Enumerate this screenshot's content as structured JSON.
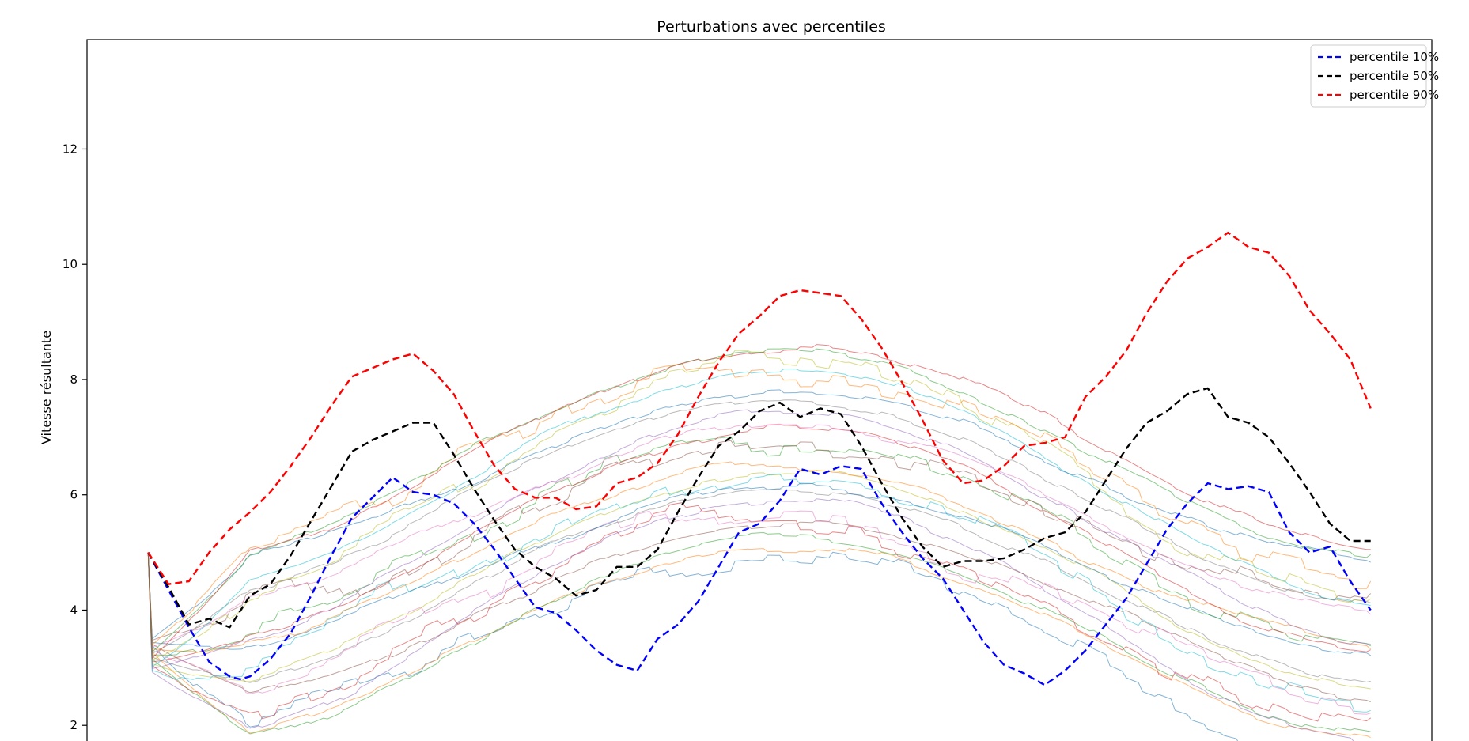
{
  "chart_data": {
    "type": "line",
    "title": "Perturbations avec percentiles",
    "xlabel": "",
    "ylabel": "Vitesse résultante",
    "xlim": [
      -0.3,
      6.3
    ],
    "ylim": [
      1.55,
      13.9
    ],
    "yticks": [
      2,
      4,
      6,
      8,
      10,
      12
    ],
    "xticks": [
      0,
      1,
      2,
      3,
      4,
      5,
      6
    ],
    "grid": false,
    "legend_position": "top-right",
    "background_runs": {
      "count": 24,
      "start_value": 5,
      "opacity": 0.55,
      "palette": [
        "#1f77b4",
        "#ff7f0e",
        "#2ca02c",
        "#d62728",
        "#9467bd",
        "#8c564b",
        "#e377c2",
        "#7f7f7f",
        "#bcbd22",
        "#17becf"
      ]
    },
    "series": [
      {
        "name": "percentile 10%",
        "color": "#0000ff",
        "dash": "dashed",
        "x": [
          0,
          0.1,
          0.2,
          0.3,
          0.4,
          0.45,
          0.5,
          0.6,
          0.7,
          0.8,
          0.9,
          1.0,
          1.1,
          1.2,
          1.3,
          1.4,
          1.5,
          1.6,
          1.7,
          1.8,
          1.9,
          2.0,
          2.1,
          2.2,
          2.3,
          2.4,
          2.5,
          2.6,
          2.7,
          2.8,
          2.9,
          3.0,
          3.1,
          3.2,
          3.3,
          3.4,
          3.5,
          3.6,
          3.7,
          3.8,
          3.9,
          4.0,
          4.1,
          4.2,
          4.3,
          4.4,
          4.5,
          4.6,
          4.7,
          4.8,
          4.9,
          5.0,
          5.1,
          5.2,
          5.3,
          5.4,
          5.5,
          5.6,
          5.7,
          5.8,
          5.9,
          6.0
        ],
        "values": [
          5.0,
          4.35,
          3.7,
          3.1,
          2.85,
          2.8,
          2.85,
          3.15,
          3.6,
          4.25,
          4.95,
          5.6,
          5.95,
          6.3,
          6.05,
          6.0,
          5.85,
          5.5,
          5.05,
          4.55,
          4.05,
          3.95,
          3.65,
          3.3,
          3.05,
          2.95,
          3.5,
          3.75,
          4.15,
          4.75,
          5.35,
          5.5,
          5.9,
          6.45,
          6.35,
          6.5,
          6.45,
          5.85,
          5.35,
          4.9,
          4.55,
          4.0,
          3.45,
          3.05,
          2.9,
          2.7,
          2.95,
          3.3,
          3.75,
          4.2,
          4.8,
          5.4,
          5.85,
          6.2,
          6.1,
          6.15,
          6.05,
          5.35,
          5.0,
          5.1,
          4.5,
          4.0
        ]
      },
      {
        "name": "percentile 50%",
        "color": "#000000",
        "dash": "dashed",
        "x": [
          0,
          0.1,
          0.2,
          0.3,
          0.4,
          0.5,
          0.6,
          0.7,
          0.8,
          0.9,
          1.0,
          1.1,
          1.2,
          1.3,
          1.4,
          1.5,
          1.6,
          1.7,
          1.8,
          1.9,
          2.0,
          2.1,
          2.2,
          2.3,
          2.4,
          2.5,
          2.6,
          2.7,
          2.8,
          2.9,
          3.0,
          3.1,
          3.2,
          3.3,
          3.4,
          3.5,
          3.6,
          3.7,
          3.8,
          3.9,
          4.0,
          4.1,
          4.2,
          4.3,
          4.4,
          4.5,
          4.6,
          4.7,
          4.8,
          4.9,
          5.0,
          5.1,
          5.2,
          5.3,
          5.4,
          5.5,
          5.6,
          5.7,
          5.8,
          5.9,
          6.0
        ],
        "values": [
          5.0,
          4.4,
          3.75,
          3.85,
          3.7,
          4.25,
          4.45,
          4.95,
          5.55,
          6.15,
          6.75,
          6.95,
          7.1,
          7.25,
          7.25,
          6.7,
          6.1,
          5.55,
          5.05,
          4.75,
          4.55,
          4.25,
          4.35,
          4.75,
          4.75,
          5.05,
          5.7,
          6.3,
          6.85,
          7.1,
          7.45,
          7.6,
          7.35,
          7.5,
          7.4,
          6.85,
          6.2,
          5.6,
          5.1,
          4.75,
          4.85,
          4.85,
          4.9,
          5.05,
          5.25,
          5.35,
          5.7,
          6.25,
          6.8,
          7.25,
          7.45,
          7.75,
          7.85,
          7.35,
          7.25,
          7.0,
          6.55,
          6.05,
          5.5,
          5.2,
          5.2
        ]
      },
      {
        "name": "percentile 90%",
        "color": "#ff0000",
        "dash": "dashed",
        "x": [
          0,
          0.1,
          0.2,
          0.3,
          0.4,
          0.5,
          0.6,
          0.7,
          0.8,
          0.9,
          1.0,
          1.1,
          1.2,
          1.3,
          1.4,
          1.5,
          1.6,
          1.7,
          1.8,
          1.9,
          2.0,
          2.1,
          2.2,
          2.3,
          2.4,
          2.5,
          2.6,
          2.7,
          2.8,
          2.9,
          3.0,
          3.1,
          3.2,
          3.3,
          3.4,
          3.5,
          3.6,
          3.7,
          3.8,
          3.9,
          4.0,
          4.1,
          4.2,
          4.3,
          4.4,
          4.5,
          4.6,
          4.7,
          4.8,
          4.9,
          5.0,
          5.1,
          5.2,
          5.3,
          5.4,
          5.5,
          5.6,
          5.7,
          5.8,
          5.9,
          6.0
        ],
        "values": [
          5.0,
          4.45,
          4.5,
          5.0,
          5.4,
          5.7,
          6.05,
          6.5,
          7.0,
          7.55,
          8.05,
          8.2,
          8.35,
          8.45,
          8.15,
          7.75,
          7.1,
          6.5,
          6.1,
          5.95,
          5.95,
          5.75,
          5.8,
          6.2,
          6.3,
          6.55,
          7.05,
          7.7,
          8.3,
          8.8,
          9.1,
          9.45,
          9.55,
          9.5,
          9.45,
          9.05,
          8.55,
          7.95,
          7.3,
          6.6,
          6.2,
          6.25,
          6.5,
          6.85,
          6.9,
          7.0,
          7.7,
          8.05,
          8.5,
          9.15,
          9.7,
          10.1,
          10.3,
          10.55,
          10.3,
          10.2,
          9.8,
          9.2,
          8.8,
          8.35,
          7.5
        ]
      }
    ]
  }
}
